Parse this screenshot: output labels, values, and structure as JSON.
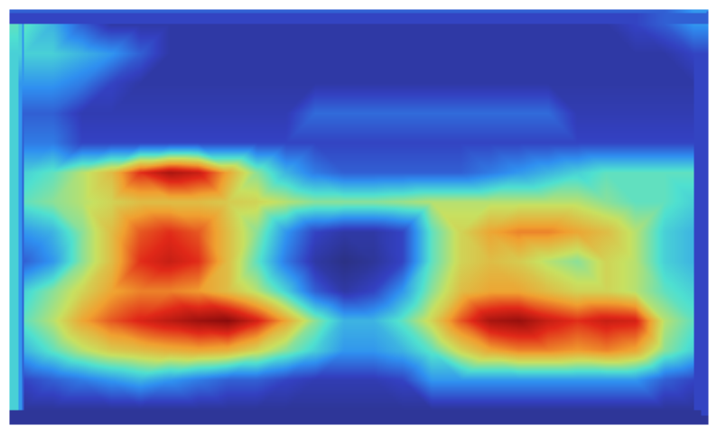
{
  "chart_data": {
    "type": "heatmap",
    "tick_labels": false,
    "zlim": [
      0,
      1
    ],
    "cells": [
      [
        0.45,
        0.35,
        0.2,
        0.1,
        0.1,
        0.1,
        0.1,
        0.1,
        0.1,
        0.1,
        0.1,
        0.1,
        0.1,
        0.1,
        0.1,
        0.1,
        0.1,
        0.1,
        0.1,
        0.1,
        0.1,
        0.15,
        0.2,
        0.3
      ],
      [
        0.4,
        0.4,
        0.35,
        0.3,
        0.2,
        0.1,
        0.1,
        0.1,
        0.1,
        0.1,
        0.1,
        0.1,
        0.1,
        0.1,
        0.1,
        0.1,
        0.1,
        0.1,
        0.1,
        0.1,
        0.1,
        0.1,
        0.1,
        0.15
      ],
      [
        0.3,
        0.3,
        0.25,
        0.15,
        0.1,
        0.1,
        0.1,
        0.1,
        0.1,
        0.1,
        0.1,
        0.1,
        0.1,
        0.1,
        0.1,
        0.1,
        0.1,
        0.1,
        0.1,
        0.1,
        0.1,
        0.1,
        0.1,
        0.1
      ],
      [
        0.2,
        0.2,
        0.12,
        0.12,
        0.12,
        0.12,
        0.12,
        0.12,
        0.12,
        0.12,
        0.22,
        0.22,
        0.22,
        0.22,
        0.22,
        0.22,
        0.22,
        0.22,
        0.22,
        0.12,
        0.12,
        0.12,
        0.12,
        0.12
      ],
      [
        0.25,
        0.25,
        0.15,
        0.15,
        0.15,
        0.15,
        0.15,
        0.15,
        0.15,
        0.15,
        0.15,
        0.15,
        0.15,
        0.15,
        0.15,
        0.15,
        0.15,
        0.15,
        0.15,
        0.15,
        0.15,
        0.15,
        0.15,
        0.15
      ],
      [
        0.4,
        0.45,
        0.55,
        0.65,
        0.85,
        0.95,
        0.9,
        0.7,
        0.5,
        0.35,
        0.25,
        0.2,
        0.2,
        0.2,
        0.2,
        0.2,
        0.25,
        0.3,
        0.35,
        0.4,
        0.45,
        0.45,
        0.45,
        0.45
      ],
      [
        0.45,
        0.5,
        0.55,
        0.6,
        0.65,
        0.65,
        0.65,
        0.62,
        0.6,
        0.55,
        0.5,
        0.5,
        0.5,
        0.52,
        0.55,
        0.55,
        0.55,
        0.55,
        0.55,
        0.55,
        0.5,
        0.45,
        0.45,
        0.4
      ],
      [
        0.3,
        0.35,
        0.5,
        0.65,
        0.8,
        0.85,
        0.8,
        0.65,
        0.5,
        0.3,
        0.15,
        0.1,
        0.1,
        0.15,
        0.45,
        0.6,
        0.7,
        0.75,
        0.75,
        0.7,
        0.65,
        0.55,
        0.4,
        0.35
      ],
      [
        0.2,
        0.3,
        0.5,
        0.65,
        0.85,
        0.9,
        0.85,
        0.65,
        0.45,
        0.25,
        0.1,
        0.05,
        0.08,
        0.15,
        0.45,
        0.6,
        0.65,
        0.62,
        0.55,
        0.5,
        0.6,
        0.55,
        0.4,
        0.35
      ],
      [
        0.4,
        0.5,
        0.6,
        0.7,
        0.75,
        0.75,
        0.72,
        0.65,
        0.55,
        0.4,
        0.2,
        0.1,
        0.15,
        0.3,
        0.5,
        0.65,
        0.7,
        0.7,
        0.65,
        0.6,
        0.6,
        0.55,
        0.45,
        0.4
      ],
      [
        0.45,
        0.55,
        0.7,
        0.8,
        0.87,
        0.92,
        0.97,
        1.0,
        0.88,
        0.7,
        0.5,
        0.35,
        0.35,
        0.45,
        0.6,
        0.8,
        0.95,
        0.98,
        0.9,
        0.85,
        0.9,
        0.88,
        0.55,
        0.45
      ],
      [
        0.35,
        0.45,
        0.55,
        0.62,
        0.65,
        0.68,
        0.7,
        0.68,
        0.6,
        0.5,
        0.4,
        0.3,
        0.3,
        0.35,
        0.45,
        0.6,
        0.7,
        0.75,
        0.75,
        0.72,
        0.75,
        0.7,
        0.5,
        0.4
      ],
      [
        0.15,
        0.2,
        0.25,
        0.3,
        0.35,
        0.3,
        0.25,
        0.2,
        0.2,
        0.15,
        0.12,
        0.12,
        0.12,
        0.15,
        0.3,
        0.3,
        0.3,
        0.3,
        0.3,
        0.3,
        0.3,
        0.3,
        0.2,
        0.15
      ],
      [
        0.08,
        0.08,
        0.08,
        0.08,
        0.08,
        0.08,
        0.08,
        0.08,
        0.08,
        0.08,
        0.08,
        0.08,
        0.08,
        0.08,
        0.08,
        0.08,
        0.08,
        0.08,
        0.08,
        0.08,
        0.08,
        0.08,
        0.08,
        0.08
      ]
    ]
  }
}
